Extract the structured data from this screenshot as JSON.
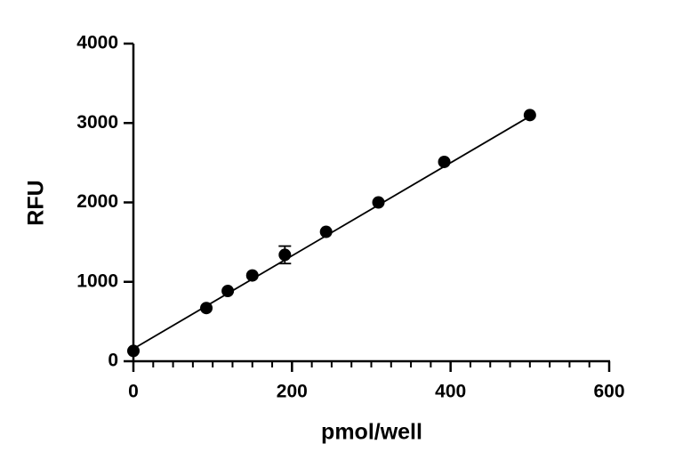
{
  "chart_data": {
    "type": "scatter",
    "x_label": "pmol/well",
    "y_label": "RFU",
    "series": [
      {
        "color": "#000000",
        "x": [
          0,
          92,
          119,
          150,
          191,
          243,
          309,
          392,
          500
        ],
        "values": [
          130,
          670,
          885,
          1080,
          1340,
          1630,
          2000,
          2510,
          3100
        ],
        "errors": [
          null,
          null,
          null,
          null,
          110,
          null,
          null,
          null,
          null
        ]
      }
    ],
    "fit_line": {
      "color": "#000000",
      "x": [
        0,
        500
      ],
      "values": [
        157,
        3085
      ]
    },
    "xlim": [
      0,
      600
    ],
    "xticks": [
      0,
      200,
      400,
      600
    ],
    "xminorticks": [
      25,
      50,
      75,
      100,
      125,
      150,
      175,
      225,
      250,
      275,
      300,
      325,
      350,
      375,
      425,
      450,
      475,
      500,
      525,
      550,
      575
    ],
    "ylim": [
      0,
      4000
    ],
    "yticks": [
      0,
      1000,
      2000,
      3000,
      4000
    ]
  }
}
